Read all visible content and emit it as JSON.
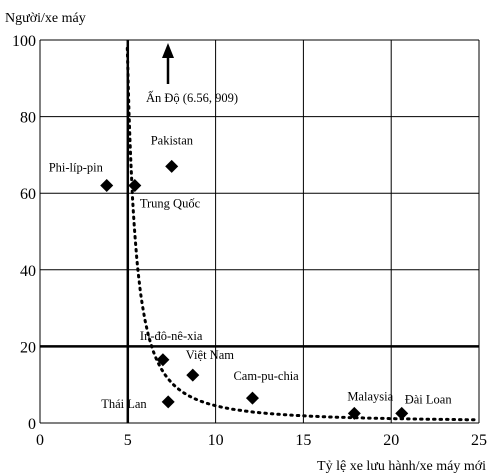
{
  "chart_data": {
    "type": "scatter",
    "title": "",
    "ylabel": "Người/xe máy",
    "xlabel": "Tỷ lệ xe lưu hành/xe máy mới",
    "xlim": [
      0,
      25
    ],
    "ylim": [
      0,
      100
    ],
    "x_ticks": [
      0,
      5,
      10,
      15,
      20,
      25
    ],
    "y_ticks": [
      0,
      20,
      40,
      60,
      80,
      100
    ],
    "grid": true,
    "reference_lines": {
      "x": 5,
      "y": 20
    },
    "trend_curve": {
      "style": "dotted",
      "shape": "hyperbolic decay"
    },
    "points": [
      {
        "label": "Phi-líp-pin",
        "x": 3.8,
        "y": 62
      },
      {
        "label": "Trung Quốc",
        "x": 5.4,
        "y": 62
      },
      {
        "label": "Pakistan",
        "x": 7.5,
        "y": 67
      },
      {
        "label": "In-đô-nê-xia",
        "x": 7.0,
        "y": 16.5
      },
      {
        "label": "Việt Nam",
        "x": 8.7,
        "y": 12.5
      },
      {
        "label": "Thái Lan",
        "x": 7.3,
        "y": 5.5
      },
      {
        "label": "Cam-pu-chia",
        "x": 12.1,
        "y": 6.5
      },
      {
        "label": "Malaysia",
        "x": 17.9,
        "y": 2.5
      },
      {
        "label": "Đài Loan",
        "x": 20.6,
        "y": 2.5
      }
    ],
    "offscale_annotation": {
      "label": "Ấn Độ (6.56, 909)",
      "x": 6.56,
      "y": 909,
      "direction": "up"
    }
  }
}
